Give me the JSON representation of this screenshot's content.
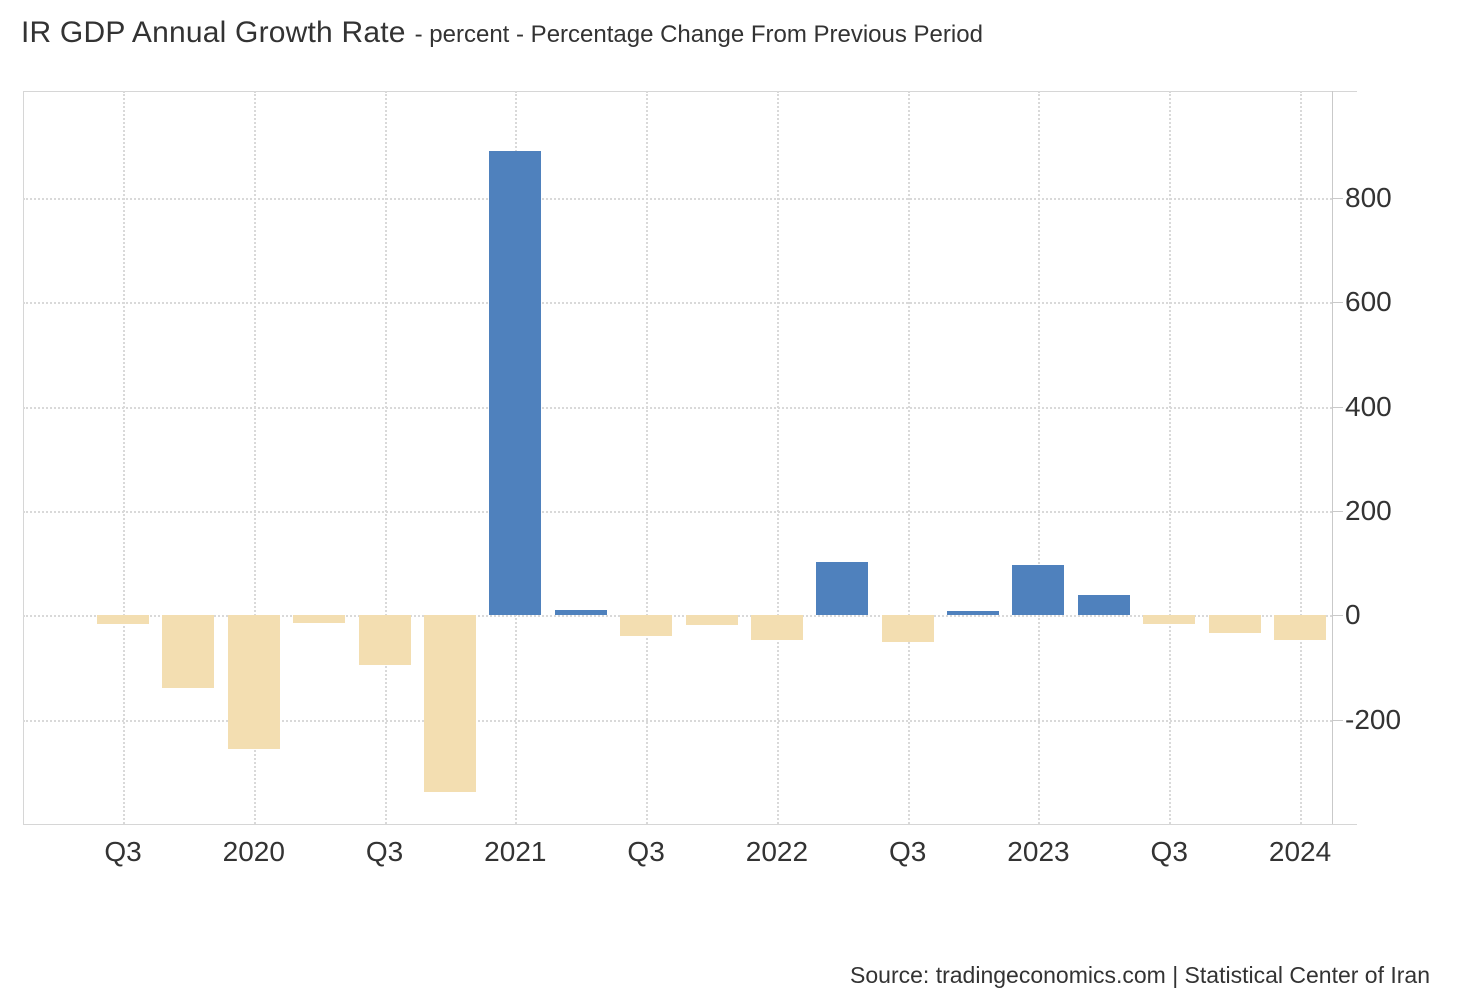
{
  "header": {
    "title": "IR GDP Annual Growth Rate",
    "subtitle": "- percent - Percentage Change From Previous Period"
  },
  "footer": {
    "source": "Source: tradingeconomics.com | Statistical Center of Iran"
  },
  "chart_data": {
    "type": "bar",
    "title": "IR GDP Annual Growth Rate",
    "unit_label": "percent",
    "measure_label": "Percentage Change From Previous Period",
    "x_tick_labels": [
      "Q3",
      "2020",
      "Q3",
      "2021",
      "Q3",
      "2022",
      "Q3",
      "2023",
      "Q3",
      "2024"
    ],
    "y_ticks": [
      800,
      600,
      400,
      200,
      0,
      -200
    ],
    "ylim": [
      -400,
      1005
    ],
    "grid": true,
    "legend": false,
    "colors": {
      "positive": "#4f81bd",
      "negative": "#f3deb1",
      "gridline": "#d9d9d9",
      "axis": "#c9c9c9",
      "text": "#333333"
    },
    "series": [
      {
        "name": "GDP Annual Growth Rate",
        "points": [
          {
            "period": "2019-Q3",
            "value": -17
          },
          {
            "period": "2019-Q4",
            "value": -140
          },
          {
            "period": "2020-Q1",
            "value": -257
          },
          {
            "period": "2020-Q2",
            "value": -15
          },
          {
            "period": "2020-Q3",
            "value": -95
          },
          {
            "period": "2020-Q4",
            "value": -339
          },
          {
            "period": "2021-Q1",
            "value": 890
          },
          {
            "period": "2021-Q2",
            "value": 10
          },
          {
            "period": "2021-Q3",
            "value": -40
          },
          {
            "period": "2021-Q4",
            "value": -19
          },
          {
            "period": "2022-Q1",
            "value": -48
          },
          {
            "period": "2022-Q2",
            "value": 103
          },
          {
            "period": "2022-Q3",
            "value": -52
          },
          {
            "period": "2022-Q4",
            "value": 8
          },
          {
            "period": "2023-Q1",
            "value": 96
          },
          {
            "period": "2023-Q2",
            "value": 38
          },
          {
            "period": "2023-Q3",
            "value": -17
          },
          {
            "period": "2023-Q4",
            "value": -34
          },
          {
            "period": "2024-Q1",
            "value": -48
          }
        ]
      }
    ]
  }
}
